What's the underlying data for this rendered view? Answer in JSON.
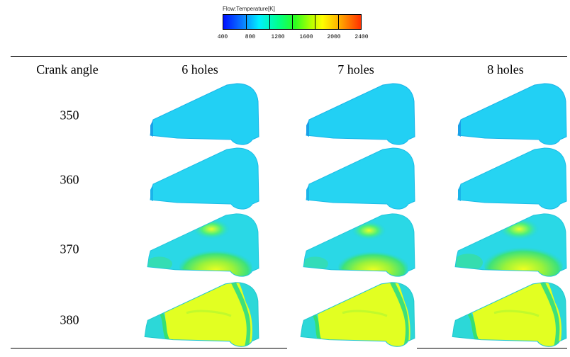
{
  "legend": {
    "title": "Flow:Temperature[K]",
    "ticks": [
      "400",
      "800",
      "1200",
      "1600",
      "2000",
      "2400"
    ]
  },
  "table": {
    "header": {
      "row_label": "Crank angle",
      "columns": [
        "6 holes",
        "7 holes",
        "8 holes"
      ]
    },
    "rows": [
      {
        "angle": "350",
        "state": "cold"
      },
      {
        "angle": "360",
        "state": "cold"
      },
      {
        "angle": "370",
        "state": "ignition"
      },
      {
        "angle": "380",
        "state": "burning"
      }
    ]
  },
  "colors": {
    "cold": "#22ccf0",
    "cold_edge": "#1e9fe0",
    "flame_green": "#3ee27a",
    "flame_yellow": "#d8ff2a",
    "hot_core": "#eaff1c"
  }
}
